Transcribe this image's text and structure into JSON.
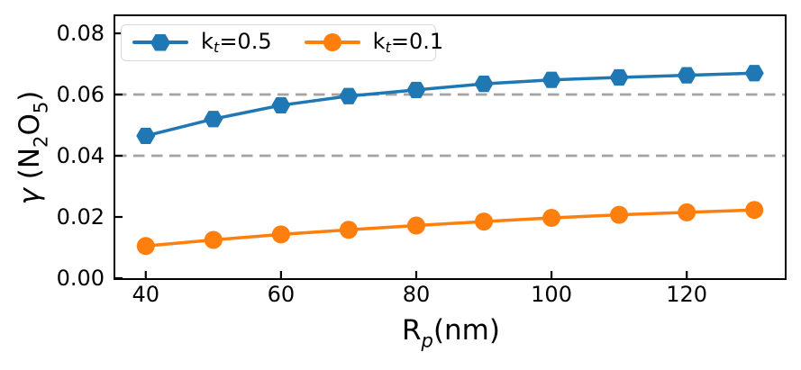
{
  "figure": {
    "background": "#ffffff",
    "ylabel_parts": [
      {
        "t": "γ",
        "italic": true
      },
      {
        "t": " (N"
      },
      {
        "t": "2",
        "sub": true
      },
      {
        "t": "O"
      },
      {
        "t": "5",
        "sub": true
      },
      {
        "t": ")"
      }
    ],
    "xlabel_parts": [
      {
        "t": "R"
      },
      {
        "t": "p",
        "sub": true,
        "italic": true
      },
      {
        "t": "(nm)"
      }
    ]
  },
  "chart_data": {
    "type": "line",
    "title": "",
    "xlabel": "R_p(nm)",
    "ylabel": "γ (N2O5)",
    "x": [
      40,
      50,
      60,
      70,
      80,
      90,
      100,
      110,
      120,
      130
    ],
    "series": [
      {
        "name": "k_t=0.5",
        "color": "#1f77b4",
        "marker": "hexagon",
        "values": [
          0.0465,
          0.052,
          0.0565,
          0.0595,
          0.0615,
          0.0635,
          0.0648,
          0.0656,
          0.0663,
          0.067
        ],
        "label_parts": [
          {
            "t": "k"
          },
          {
            "t": "t",
            "sub": true,
            "italic": true
          },
          {
            "t": "=0.5"
          }
        ]
      },
      {
        "name": "k_t=0.1",
        "color": "#ff7f0e",
        "marker": "circle",
        "values": [
          0.0105,
          0.0125,
          0.0143,
          0.0158,
          0.0172,
          0.0185,
          0.0197,
          0.0207,
          0.0215,
          0.0223
        ],
        "label_parts": [
          {
            "t": "k"
          },
          {
            "t": "t",
            "sub": true,
            "italic": true
          },
          {
            "t": "=0.1"
          }
        ]
      }
    ],
    "xlim": [
      35.5,
      134.5
    ],
    "ylim": [
      0,
      0.0856
    ],
    "xticks": [
      {
        "v": 40,
        "label": "40"
      },
      {
        "v": 60,
        "label": "60"
      },
      {
        "v": 80,
        "label": "80"
      },
      {
        "v": 100,
        "label": "100"
      },
      {
        "v": 120,
        "label": "120"
      }
    ],
    "yticks": [
      {
        "v": 0.0,
        "label": "0.00"
      },
      {
        "v": 0.02,
        "label": "0.02"
      },
      {
        "v": 0.04,
        "label": "0.04"
      },
      {
        "v": 0.06,
        "label": "0.06"
      },
      {
        "v": 0.08,
        "label": "0.08"
      }
    ],
    "hlines": [
      {
        "y": 0.04,
        "style": "dashed",
        "color": "#a3a3a3"
      },
      {
        "y": 0.06,
        "style": "dashed",
        "color": "#a3a3a3"
      }
    ],
    "grid": false,
    "legend_position": "upper left",
    "axis_color": "#000000",
    "tick_direction": "in"
  }
}
